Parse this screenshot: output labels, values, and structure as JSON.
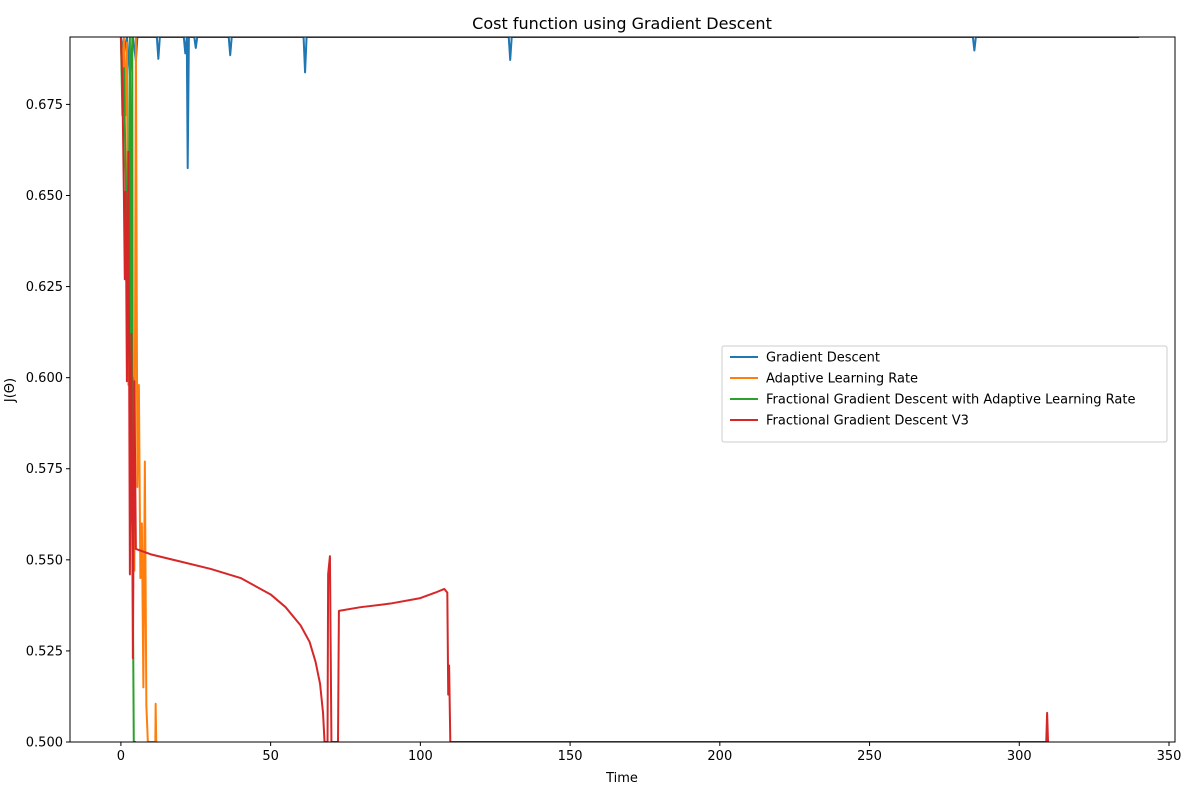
{
  "chart_data": {
    "type": "line",
    "title": "Cost function using Gradient Descent",
    "xlabel": "Time",
    "ylabel": "J(Θ)",
    "xlim": [
      -17,
      352
    ],
    "ylim": [
      0.5,
      0.6935
    ],
    "xticks": [
      0,
      50,
      100,
      150,
      200,
      250,
      300,
      350
    ],
    "yticks": [
      0.5,
      0.525,
      0.55,
      0.575,
      0.6,
      0.625,
      0.65,
      0.675
    ],
    "ytick_labels": [
      "0.500",
      "0.525",
      "0.550",
      "0.575",
      "0.600",
      "0.625",
      "0.650",
      "0.675"
    ],
    "grid": false,
    "legend_position": "center-right",
    "series": [
      {
        "name": "Gradient Descent",
        "color": "#1f77b4",
        "points": [
          [
            0,
            0.6935
          ],
          [
            1,
            0.689
          ],
          [
            2,
            0.6935
          ],
          [
            3,
            0.683
          ],
          [
            4,
            0.6935
          ],
          [
            5,
            0.687
          ],
          [
            5.5,
            0.6935
          ],
          [
            12,
            0.6935
          ],
          [
            12.5,
            0.6875
          ],
          [
            13,
            0.6935
          ],
          [
            21,
            0.6935
          ],
          [
            21.5,
            0.689
          ],
          [
            22,
            0.6935
          ],
          [
            22.3,
            0.6575
          ],
          [
            22.7,
            0.6935
          ],
          [
            24.5,
            0.6935
          ],
          [
            25,
            0.6905
          ],
          [
            25.5,
            0.6935
          ],
          [
            36,
            0.6935
          ],
          [
            36.5,
            0.6885
          ],
          [
            37,
            0.6935
          ],
          [
            61,
            0.6935
          ],
          [
            61.5,
            0.6838
          ],
          [
            62,
            0.6935
          ],
          [
            129.5,
            0.6935
          ],
          [
            130,
            0.6872
          ],
          [
            130.5,
            0.6935
          ],
          [
            284.5,
            0.6935
          ],
          [
            285,
            0.6898
          ],
          [
            285.5,
            0.6935
          ],
          [
            340,
            0.6935
          ]
        ]
      },
      {
        "name": "Adaptive Learning Rate",
        "color": "#ff7f0e",
        "points": [
          [
            0,
            0.6935
          ],
          [
            0.5,
            0.68
          ],
          [
            1,
            0.6935
          ],
          [
            1.5,
            0.672
          ],
          [
            2,
            0.692
          ],
          [
            2.5,
            0.598
          ],
          [
            3,
            0.655
          ],
          [
            3.5,
            0.56
          ],
          [
            4,
            0.6
          ],
          [
            4.5,
            0.547
          ],
          [
            5,
            0.6935
          ],
          [
            5.5,
            0.57
          ],
          [
            6,
            0.598
          ],
          [
            6.5,
            0.545
          ],
          [
            7,
            0.56
          ],
          [
            7.5,
            0.515
          ],
          [
            8,
            0.577
          ],
          [
            8.5,
            0.51
          ],
          [
            9,
            0.5
          ],
          [
            11.5,
            0.5
          ],
          [
            11.6,
            0.5105
          ],
          [
            11.8,
            0.5
          ]
        ]
      },
      {
        "name": "Fractional Gradient Descent with Adaptive Learning Rate",
        "color": "#2ca02c",
        "points": [
          [
            0,
            0.6935
          ],
          [
            0.5,
            0.672
          ],
          [
            1,
            0.685
          ],
          [
            1.5,
            0.66
          ],
          [
            2,
            0.64
          ],
          [
            2.5,
            0.62
          ],
          [
            3,
            0.6935
          ],
          [
            3.5,
            0.58
          ],
          [
            3.8,
            0.6935
          ],
          [
            4,
            0.54
          ],
          [
            4.3,
            0.5
          ],
          [
            5,
            0.5
          ]
        ]
      },
      {
        "name": "Fractional Gradient Descent V3",
        "color": "#d62728",
        "points": [
          [
            0,
            0.6935
          ],
          [
            0.5,
            0.68
          ],
          [
            1,
            0.65
          ],
          [
            1.3,
            0.627
          ],
          [
            1.6,
            0.651
          ],
          [
            2,
            0.599
          ],
          [
            2.5,
            0.662
          ],
          [
            3,
            0.546
          ],
          [
            3.5,
            0.612
          ],
          [
            4,
            0.523
          ],
          [
            4.5,
            0.599
          ],
          [
            5,
            0.553
          ],
          [
            10,
            0.5515
          ],
          [
            20,
            0.5495
          ],
          [
            30,
            0.5475
          ],
          [
            40,
            0.545
          ],
          [
            50,
            0.5405
          ],
          [
            55,
            0.537
          ],
          [
            60,
            0.532
          ],
          [
            63,
            0.5275
          ],
          [
            65,
            0.522
          ],
          [
            66.5,
            0.516
          ],
          [
            67.5,
            0.508
          ],
          [
            68,
            0.5
          ],
          [
            69,
            0.5
          ],
          [
            69.2,
            0.546
          ],
          [
            69.8,
            0.551
          ],
          [
            70.3,
            0.5
          ],
          [
            72.5,
            0.5
          ],
          [
            72.8,
            0.536
          ],
          [
            80,
            0.537
          ],
          [
            90,
            0.538
          ],
          [
            100,
            0.5395
          ],
          [
            105,
            0.541
          ],
          [
            108,
            0.542
          ],
          [
            109,
            0.541
          ],
          [
            109.3,
            0.513
          ],
          [
            109.6,
            0.521
          ],
          [
            110,
            0.5
          ],
          [
            309,
            0.5
          ],
          [
            309.3,
            0.508
          ],
          [
            309.6,
            0.5
          ]
        ]
      }
    ]
  }
}
